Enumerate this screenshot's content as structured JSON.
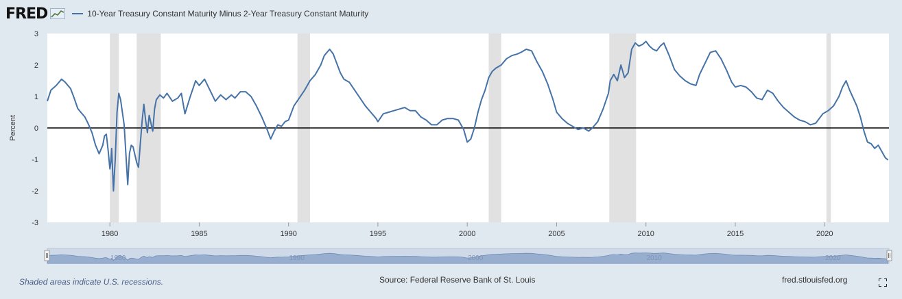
{
  "header": {
    "logo": "FRED",
    "series_title": "10-Year Treasury Constant Maturity Minus 2-Year Treasury Constant Maturity"
  },
  "footer": {
    "note": "Shaded areas indicate U.S. recessions.",
    "source": "Source: Federal Reserve Bank of St. Louis",
    "site": "fred.stlouisfed.org"
  },
  "colors": {
    "line": "#4572a7",
    "recession": "#e1e1e1",
    "background": "#e1e9f0",
    "navigator": "#8aa2c8"
  },
  "icons": {
    "logo_icon": "chart-line-icon",
    "fullscreen": "fullscreen-icon"
  },
  "chart_data": {
    "type": "line",
    "title": "10-Year Treasury Constant Maturity Minus 2-Year Treasury Constant Maturity",
    "ylabel": "Percent",
    "xlabel": "",
    "xlim": [
      1976.5,
      2023.6
    ],
    "ylim": [
      -3,
      3
    ],
    "yticks": [
      3,
      2,
      1,
      0,
      -1,
      -2,
      -3
    ],
    "xticks": [
      1980,
      1985,
      1990,
      1995,
      2000,
      2005,
      2010,
      2015,
      2020
    ],
    "grid": false,
    "zero_line": true,
    "recessions": [
      [
        1980.0,
        1980.5
      ],
      [
        1981.5,
        1982.85
      ],
      [
        1990.5,
        1991.2
      ],
      [
        2001.2,
        2001.9
      ],
      [
        2007.95,
        2009.45
      ],
      [
        2020.1,
        2020.35
      ]
    ],
    "series": [
      {
        "name": "10-Year Treasury Constant Maturity Minus 2-Year Treasury Constant Maturity",
        "x": [
          1976.5,
          1976.7,
          1977.0,
          1977.3,
          1977.5,
          1977.8,
          1978.0,
          1978.2,
          1978.4,
          1978.6,
          1978.8,
          1979.0,
          1979.2,
          1979.4,
          1979.6,
          1979.7,
          1979.8,
          1979.9,
          1980.0,
          1980.05,
          1980.1,
          1980.2,
          1980.3,
          1980.4,
          1980.5,
          1980.6,
          1980.8,
          1981.0,
          1981.1,
          1981.2,
          1981.3,
          1981.5,
          1981.6,
          1981.8,
          1981.9,
          1982.0,
          1982.1,
          1982.2,
          1982.4,
          1982.5,
          1982.6,
          1982.8,
          1983.0,
          1983.2,
          1983.5,
          1983.8,
          1984.0,
          1984.2,
          1984.5,
          1984.8,
          1985.0,
          1985.3,
          1985.6,
          1985.9,
          1986.2,
          1986.5,
          1986.8,
          1987.0,
          1987.3,
          1987.6,
          1987.9,
          1988.2,
          1988.5,
          1988.8,
          1989.0,
          1989.2,
          1989.4,
          1989.6,
          1989.8,
          1990.0,
          1990.3,
          1990.6,
          1990.9,
          1991.2,
          1991.5,
          1991.8,
          1992.0,
          1992.3,
          1992.5,
          1992.7,
          1992.9,
          1993.1,
          1993.4,
          1993.7,
          1994.0,
          1994.3,
          1994.6,
          1994.9,
          1995.0,
          1995.3,
          1995.6,
          1995.9,
          1996.2,
          1996.5,
          1996.8,
          1997.1,
          1997.4,
          1997.7,
          1998.0,
          1998.3,
          1998.6,
          1998.9,
          1999.2,
          1999.5,
          1999.8,
          2000.0,
          2000.2,
          2000.4,
          2000.6,
          2000.8,
          2001.0,
          2001.2,
          2001.4,
          2001.6,
          2001.9,
          2002.2,
          2002.5,
          2002.8,
          2003.0,
          2003.3,
          2003.6,
          2003.9,
          2004.2,
          2004.5,
          2004.8,
          2005.0,
          2005.3,
          2005.6,
          2005.9,
          2006.2,
          2006.5,
          2006.8,
          2007.0,
          2007.3,
          2007.6,
          2007.9,
          2008.0,
          2008.2,
          2008.4,
          2008.6,
          2008.8,
          2009.0,
          2009.2,
          2009.4,
          2009.6,
          2009.8,
          2010.0,
          2010.2,
          2010.4,
          2010.6,
          2010.8,
          2011.0,
          2011.3,
          2011.6,
          2011.9,
          2012.2,
          2012.5,
          2012.8,
          2013.0,
          2013.3,
          2013.6,
          2013.9,
          2014.2,
          2014.5,
          2014.8,
          2015.0,
          2015.3,
          2015.6,
          2015.9,
          2016.2,
          2016.5,
          2016.8,
          2017.1,
          2017.4,
          2017.7,
          2018.0,
          2018.3,
          2018.6,
          2018.9,
          2019.2,
          2019.5,
          2019.7,
          2019.9,
          2020.2,
          2020.5,
          2020.8,
          2021.0,
          2021.2,
          2021.4,
          2021.6,
          2021.8,
          2022.0,
          2022.2,
          2022.4,
          2022.6,
          2022.8,
          2023.0,
          2023.2,
          2023.4,
          2023.55
        ],
        "values": [
          0.85,
          1.2,
          1.35,
          1.55,
          1.45,
          1.25,
          0.95,
          0.62,
          0.48,
          0.35,
          0.12,
          -0.15,
          -0.55,
          -0.82,
          -0.55,
          -0.25,
          -0.2,
          -0.7,
          -1.3,
          -1.1,
          -0.65,
          -2.0,
          -1.0,
          0.5,
          1.1,
          0.9,
          0.1,
          -1.8,
          -0.8,
          -0.55,
          -0.6,
          -1.1,
          -1.25,
          0.2,
          0.75,
          0.25,
          -0.15,
          0.4,
          -0.1,
          0.6,
          0.9,
          1.05,
          0.95,
          1.1,
          0.85,
          0.95,
          1.1,
          0.45,
          1.0,
          1.5,
          1.35,
          1.55,
          1.2,
          0.85,
          1.05,
          0.9,
          1.05,
          0.95,
          1.15,
          1.15,
          1.0,
          0.7,
          0.35,
          -0.05,
          -0.35,
          -0.1,
          0.1,
          0.05,
          0.2,
          0.25,
          0.7,
          0.95,
          1.2,
          1.5,
          1.7,
          2.0,
          2.3,
          2.5,
          2.35,
          2.05,
          1.75,
          1.55,
          1.45,
          1.2,
          0.95,
          0.7,
          0.5,
          0.3,
          0.2,
          0.45,
          0.5,
          0.55,
          0.6,
          0.65,
          0.55,
          0.55,
          0.35,
          0.25,
          0.1,
          0.1,
          0.25,
          0.3,
          0.3,
          0.25,
          -0.05,
          -0.45,
          -0.35,
          0.0,
          0.5,
          0.9,
          1.2,
          1.6,
          1.8,
          1.9,
          2.0,
          2.2,
          2.3,
          2.35,
          2.4,
          2.5,
          2.45,
          2.1,
          1.8,
          1.4,
          0.9,
          0.5,
          0.3,
          0.15,
          0.05,
          -0.05,
          0.0,
          -0.1,
          0.0,
          0.2,
          0.6,
          1.1,
          1.5,
          1.7,
          1.5,
          2.0,
          1.6,
          1.75,
          2.5,
          2.7,
          2.6,
          2.65,
          2.75,
          2.6,
          2.5,
          2.45,
          2.6,
          2.7,
          2.3,
          1.85,
          1.65,
          1.5,
          1.4,
          1.35,
          1.7,
          2.05,
          2.4,
          2.45,
          2.2,
          1.85,
          1.45,
          1.3,
          1.35,
          1.3,
          1.15,
          0.95,
          0.9,
          1.2,
          1.1,
          0.85,
          0.65,
          0.5,
          0.35,
          0.25,
          0.2,
          0.1,
          0.15,
          0.3,
          0.45,
          0.55,
          0.7,
          1.0,
          1.3,
          1.5,
          1.2,
          0.95,
          0.7,
          0.35,
          -0.1,
          -0.45,
          -0.5,
          -0.65,
          -0.55,
          -0.75,
          -0.95,
          -1.02
        ]
      }
    ],
    "navigator": {
      "labels": [
        "1980",
        "1990",
        "2000",
        "2010",
        "2020"
      ]
    }
  }
}
